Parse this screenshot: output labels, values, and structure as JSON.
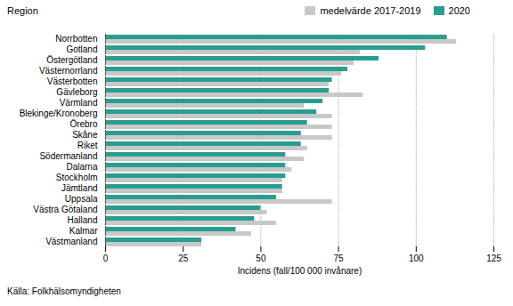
{
  "chart_data": {
    "type": "bar",
    "orientation": "horizontal",
    "categories": [
      "Norrbotten",
      "Gotland",
      "Östergötland",
      "Västernorrland",
      "Västerbotten",
      "Gävleborg",
      "Värmland",
      "Blekinge/Kronoberg",
      "Örebro",
      "Skåne",
      "Riket",
      "Södermanland",
      "Dalarna",
      "Stockholm",
      "Jämtland",
      "Uppsala",
      "Västra Götaland",
      "Halland",
      "Kalmar",
      "Västmanland"
    ],
    "series": [
      {
        "name": "medelvärde 2017-2019",
        "color": "#c8c8c8",
        "values": [
          113,
          82,
          80,
          76,
          72,
          83,
          64,
          73,
          73,
          73,
          65,
          64,
          60,
          57,
          57,
          73,
          52,
          55,
          47,
          31
        ]
      },
      {
        "name": "2020",
        "color": "#2a9d8f",
        "values": [
          110,
          103,
          88,
          78,
          73,
          72,
          70,
          68,
          65,
          63,
          63,
          58,
          58,
          58,
          57,
          55,
          50,
          48,
          42,
          31
        ]
      }
    ],
    "xlabel": "Incidens (fall/100 000 invånare)",
    "ylabel": "Region",
    "xlim": [
      0,
      125
    ],
    "xticks": [
      0,
      25,
      50,
      75,
      100,
      125
    ],
    "grid": true,
    "legend": "top",
    "annotations": [
      "Källa: Folkhälsomyndigheten"
    ]
  }
}
